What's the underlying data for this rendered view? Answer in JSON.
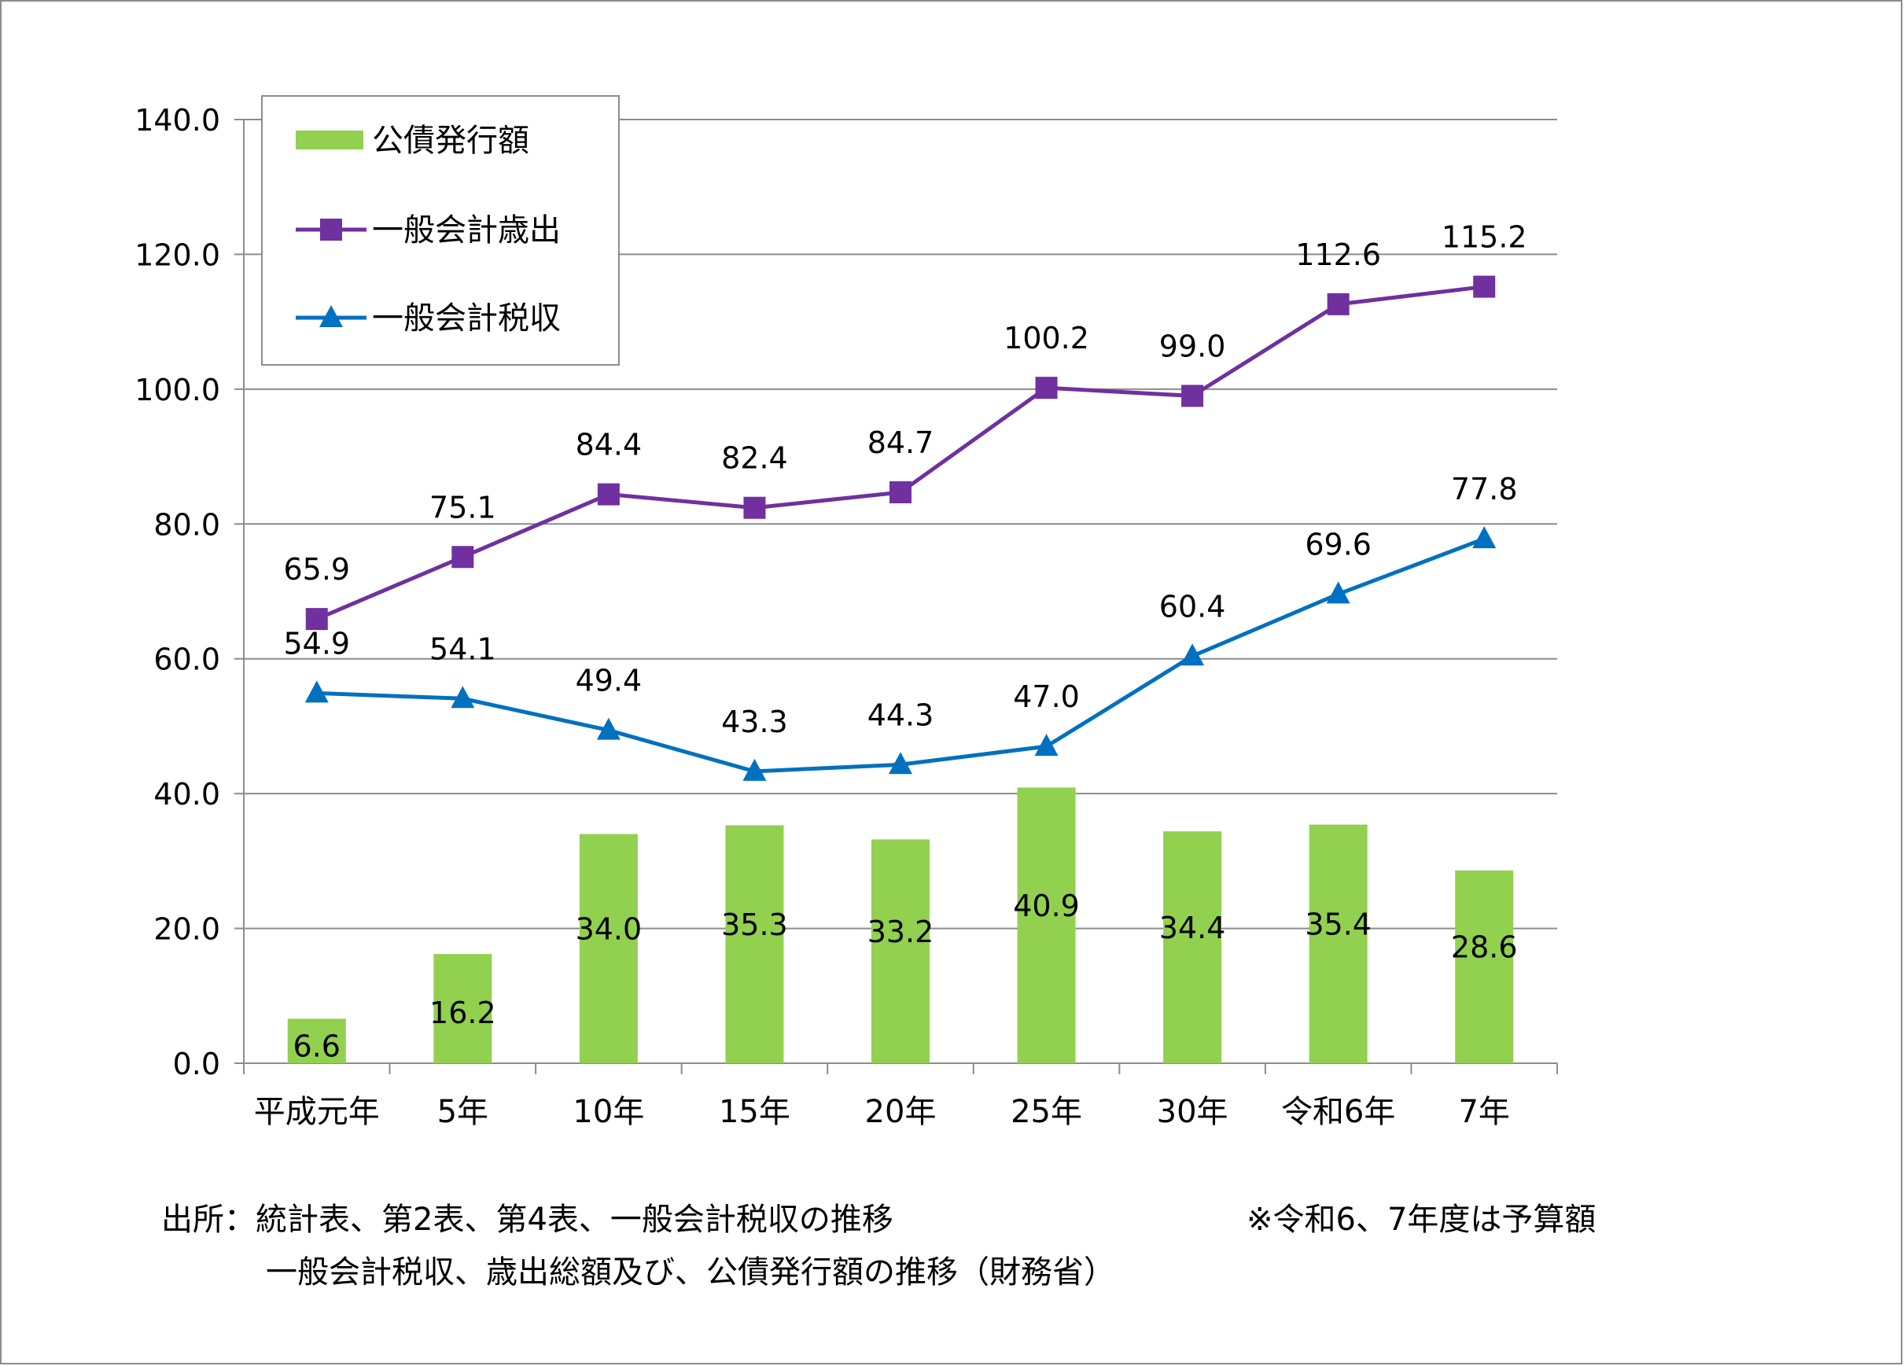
{
  "chart_data": {
    "type": "bar",
    "categories": [
      "平成元年",
      "5年",
      "10年",
      "15年",
      "20年",
      "25年",
      "30年",
      "令和6年",
      "7年"
    ],
    "ylim": [
      0,
      140
    ],
    "yticks": [
      "0.0",
      "20.0",
      "40.0",
      "60.0",
      "80.0",
      "100.0",
      "120.0",
      "140.0"
    ],
    "grid": true,
    "legend_position": "top-left",
    "series": [
      {
        "name": "公債発行額",
        "type": "bar",
        "color": "#92d050",
        "values": [
          6.6,
          16.2,
          34.0,
          35.3,
          33.2,
          40.9,
          34.4,
          35.4,
          28.6
        ],
        "labels": [
          "6.6",
          "16.2",
          "34.0",
          "35.3",
          "33.2",
          "40.9",
          "34.4",
          "35.4",
          "28.6"
        ]
      },
      {
        "name": "一般会計歳出",
        "type": "line",
        "marker": "square",
        "color": "#7030a0",
        "values": [
          65.9,
          75.1,
          84.4,
          82.4,
          84.7,
          100.2,
          99.0,
          112.6,
          115.2
        ],
        "labels": [
          "65.9",
          "75.1",
          "84.4",
          "82.4",
          "84.7",
          "100.2",
          "99.0",
          "112.6",
          "115.2"
        ]
      },
      {
        "name": "一般会計税収",
        "type": "line",
        "marker": "triangle",
        "color": "#0070c0",
        "values": [
          54.9,
          54.1,
          49.4,
          43.3,
          44.3,
          47.0,
          60.4,
          69.6,
          77.8
        ],
        "labels": [
          "54.9",
          "54.1",
          "49.4",
          "43.3",
          "44.3",
          "47.0",
          "60.4",
          "69.6",
          "77.8"
        ]
      }
    ]
  },
  "notes": {
    "source_line1": "出所：統計表、第2表、第4表、一般会計税収の推移",
    "source_line2": "一般会計税収、歳出総額及び、公債発行額の推移（財務省）",
    "budget_note": "※令和6、7年度は予算額"
  }
}
